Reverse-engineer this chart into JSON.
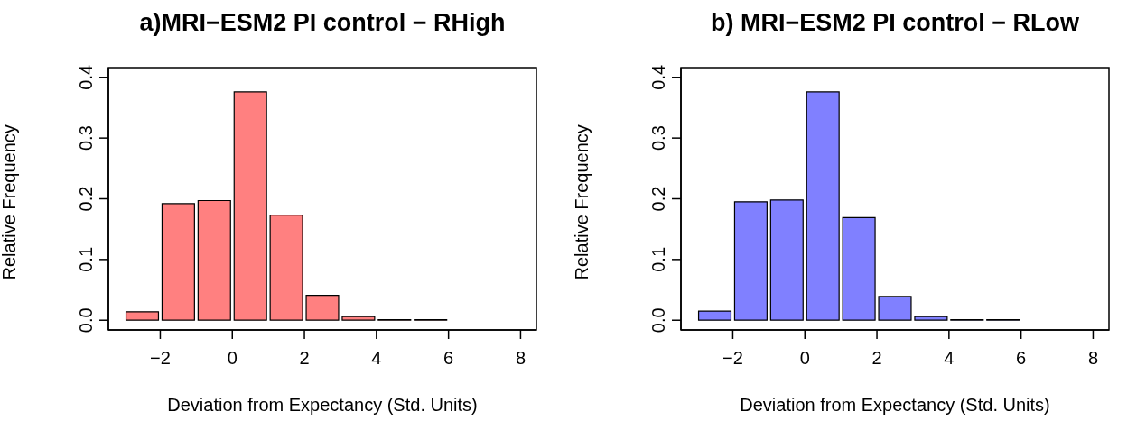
{
  "chart_data": [
    {
      "type": "histogram",
      "title": "a)MRI−ESM2 PI control − RHigh",
      "xlabel": "Deviation from Expectancy (Std. Units)",
      "ylabel": "Relative Frequency",
      "bins": [
        -3,
        -2,
        -1,
        0,
        1,
        2,
        3,
        4,
        5,
        6,
        7,
        8
      ],
      "values": [
        0.014,
        0.192,
        0.197,
        0.376,
        0.173,
        0.041,
        0.006,
        0.001,
        0.001,
        0,
        0
      ],
      "color": "#ff8080",
      "xlim": [
        -3.44,
        8.44
      ],
      "ylim": [
        -0.016,
        0.416
      ],
      "xticks": [
        -2,
        0,
        2,
        4,
        6,
        8
      ],
      "yticks": [
        {
          "value": 0,
          "label": "0.0"
        },
        0.1,
        0.2,
        0.3,
        0.4
      ]
    },
    {
      "type": "histogram",
      "title": "b) MRI−ESM2 PI control − RLow",
      "xlabel": "Deviation from Expectancy (Std. Units)",
      "ylabel": "Relative Frequency",
      "bins": [
        -3,
        -2,
        -1,
        0,
        1,
        2,
        3,
        4,
        5,
        6,
        7,
        8
      ],
      "values": [
        0.015,
        0.195,
        0.198,
        0.376,
        0.169,
        0.039,
        0.006,
        0.001,
        0.001,
        0,
        0
      ],
      "color": "#8080ff",
      "xlim": [
        -3.44,
        8.44
      ],
      "ylim": [
        -0.016,
        0.416
      ],
      "xticks": [
        -2,
        0,
        2,
        4,
        6,
        8
      ],
      "yticks": [
        {
          "value": 0,
          "label": "0.0"
        },
        0.1,
        0.2,
        0.3,
        0.4
      ]
    }
  ]
}
